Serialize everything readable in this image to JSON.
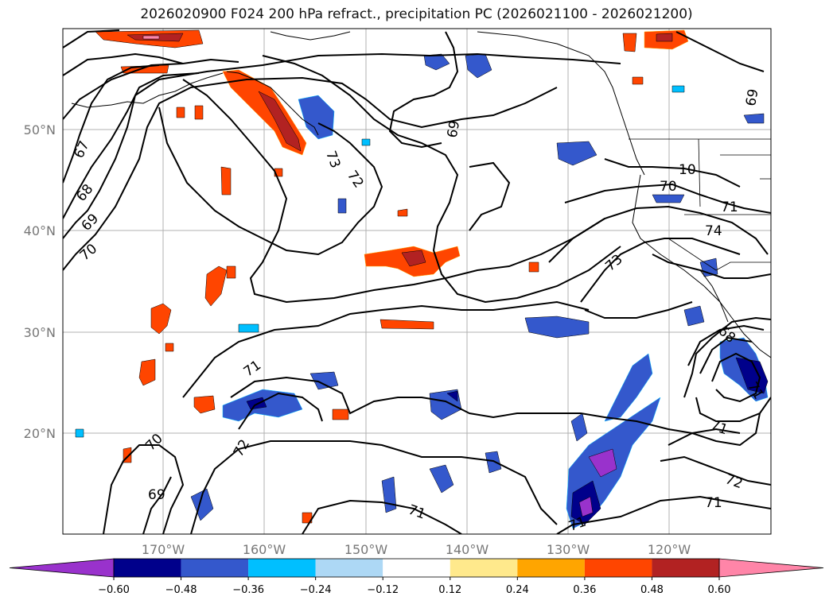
{
  "title": "2026020900 F024 200 hPa refract., precipitation PC (2026021100 - 2026021200)",
  "map": {
    "lat_labels": [
      "50°N",
      "40°N",
      "30°N",
      "20°N"
    ],
    "lon_labels": [
      "170°W",
      "160°W",
      "150°W",
      "140°W",
      "130°W",
      "120°W"
    ],
    "contour_labels": [
      "67",
      "68",
      "69",
      "70",
      "71",
      "72",
      "73",
      "74",
      "69",
      "70",
      "71",
      "72",
      "73",
      "70",
      "71",
      "71",
      "72",
      "69",
      "70",
      "71",
      "69",
      "10",
      "68",
      "71"
    ]
  },
  "colorbar": {
    "ticks": [
      "−0.60",
      "−0.48",
      "−0.36",
      "−0.24",
      "−0.12",
      "0.12",
      "0.24",
      "0.36",
      "0.48",
      "0.60"
    ],
    "colors": [
      "#9932cc",
      "#00008b",
      "#3458cc",
      "#00bfff",
      "#add8f5",
      "#ffffff",
      "#ffe98c",
      "#ffa500",
      "#ff4500",
      "#b22222",
      "#ff85a8"
    ]
  }
}
